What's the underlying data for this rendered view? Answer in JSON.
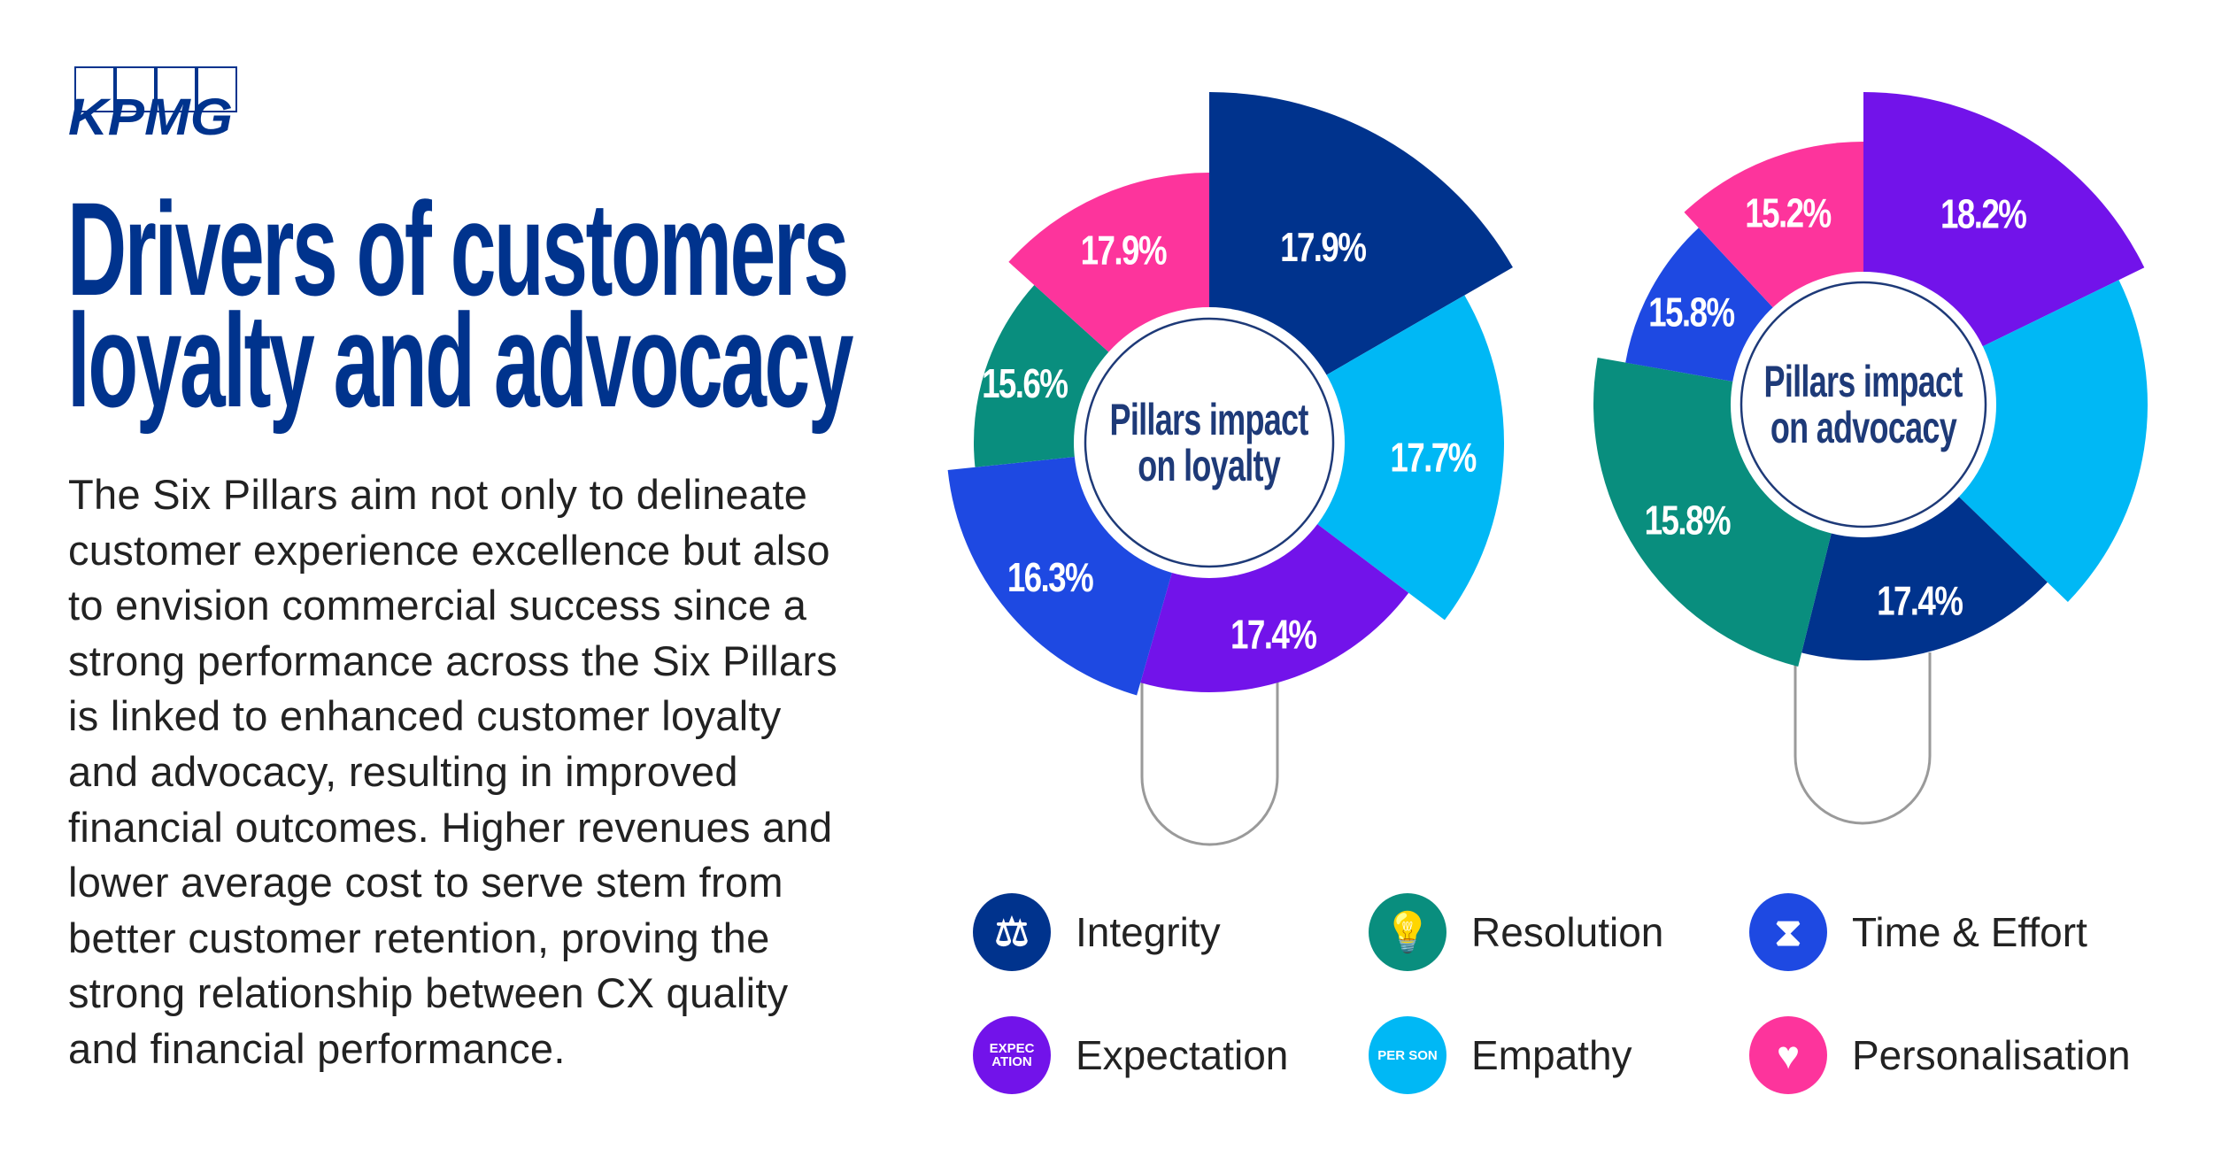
{
  "logo": {
    "text": "KPMG",
    "color": "#00338d"
  },
  "title": {
    "lines": [
      "Drivers of customers",
      "loyalty and advocacy"
    ]
  },
  "body": {
    "lines": [
      "The Six Pillars aim not only to delineate",
      "customer experience excellence but also",
      "to envision commercial success since a",
      "strong performance across the Six Pillars",
      "is linked to enhanced customer loyalty",
      "and advocacy, resulting in improved",
      "financial outcomes. Higher revenues and",
      "lower average cost to serve stem from",
      "better customer retention, proving the",
      "strong relationship between CX quality",
      "and financial performance."
    ]
  },
  "legend": [
    {
      "label": "Integrity",
      "icon": "scales-icon",
      "glyph": "⚖",
      "color": "#00338d"
    },
    {
      "label": "Resolution",
      "icon": "lightbulb-icon",
      "glyph": "💡",
      "color": "#098e7e"
    },
    {
      "label": "Time & Effort",
      "icon": "hourglass-icon",
      "glyph": "⧗",
      "color": "#1e49e2"
    },
    {
      "label": "Expectation",
      "icon": "signpost-icon",
      "glyph": "EXPEC ATION",
      "color": "#7213ea"
    },
    {
      "label": "Empathy",
      "icon": "person-icon",
      "glyph": "PER SON",
      "color": "#00b8f5"
    },
    {
      "label": "Personalisation",
      "icon": "heart-icon",
      "glyph": "♥",
      "color": "#fd349c"
    }
  ],
  "chart_data": [
    {
      "type": "pie",
      "title": "Pillars impact on loyalty",
      "title_lines": [
        "Pillars impact",
        "on loyalty"
      ],
      "slices": [
        {
          "pillar": "Integrity",
          "value": 17.9,
          "label": "17.9%",
          "color": "#00338d"
        },
        {
          "pillar": "Empathy",
          "value": 17.7,
          "label": "17.7%",
          "color": "#00b8f5"
        },
        {
          "pillar": "Expectation",
          "value": 17.4,
          "label": "17.4%",
          "color": "#7213ea"
        },
        {
          "pillar": "Time & Effort",
          "value": 16.3,
          "label": "16.3%",
          "color": "#1e49e2"
        },
        {
          "pillar": "Resolution",
          "value": 15.6,
          "label": "15.6%",
          "color": "#098e7e"
        },
        {
          "pillar": "Personalisation",
          "value": 17.9,
          "label": "17.9%",
          "color": "#fd349c"
        }
      ]
    },
    {
      "type": "pie",
      "title": "Pillars impact on advocacy",
      "title_lines": [
        "Pillars impact",
        "on advocacy"
      ],
      "slices": [
        {
          "pillar": "Expectation",
          "value": 18.2,
          "label": "18.2%",
          "color": "#7213ea"
        },
        {
          "pillar": "Empathy",
          "value": null,
          "label": "",
          "color": "#00b8f5"
        },
        {
          "pillar": "Integrity",
          "value": 17.4,
          "label": "17.4%",
          "color": "#00338d"
        },
        {
          "pillar": "Resolution",
          "value": 15.8,
          "label": "15.8%",
          "color": "#098e7e"
        },
        {
          "pillar": "Time & Effort",
          "value": 15.8,
          "label": "15.8%",
          "color": "#1e49e2"
        },
        {
          "pillar": "Personalisation",
          "value": 15.2,
          "label": "15.2%",
          "color": "#fd349c"
        }
      ]
    }
  ]
}
